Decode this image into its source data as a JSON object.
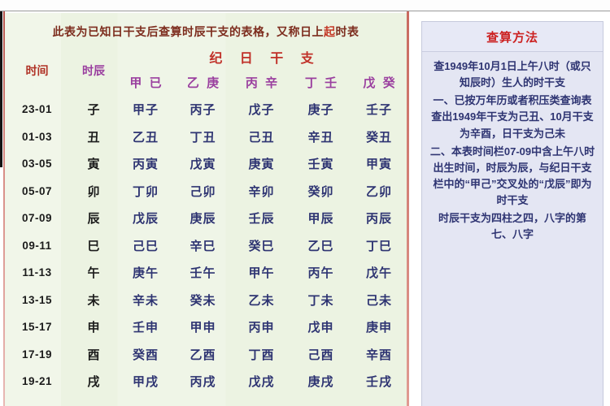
{
  "colors": {
    "table_bg": "#ecf3e2",
    "panel_bg": "#e4e6f3",
    "title_maroon": "#7d2d1e",
    "title_highlight_red": "#c43a28",
    "header_red": "#c03028",
    "time_header_red": "#b03226",
    "stem_purple": "#9a3f9f",
    "cell_navy": "#2e3472",
    "time_black": "#1c1c1c",
    "divider_pink": "#d98379",
    "panel_title_red": "#cc2222"
  },
  "header": {
    "title_part1": "此表为已知日干支后查算时辰干支的表格，又称日上",
    "title_part2": "起",
    "title_part3": "时表"
  },
  "table": {
    "group_header": "纪 日 干 支",
    "col_time": "时间",
    "col_branch": "时辰",
    "stem_cols": [
      "甲 已",
      "乙 庚",
      "丙 辛",
      "丁 壬",
      "戊 癸"
    ],
    "rows": [
      {
        "time": "23-01",
        "branch": "子",
        "cells": [
          "甲子",
          "丙子",
          "戊子",
          "庚子",
          "壬子"
        ]
      },
      {
        "time": "01-03",
        "branch": "丑",
        "cells": [
          "乙丑",
          "丁丑",
          "己丑",
          "辛丑",
          "癸丑"
        ]
      },
      {
        "time": "03-05",
        "branch": "寅",
        "cells": [
          "丙寅",
          "戊寅",
          "庚寅",
          "壬寅",
          "甲寅"
        ]
      },
      {
        "time": "05-07",
        "branch": "卯",
        "cells": [
          "丁卯",
          "己卯",
          "辛卯",
          "癸卯",
          "乙卯"
        ]
      },
      {
        "time": "07-09",
        "branch": "辰",
        "cells": [
          "戊辰",
          "庚辰",
          "壬辰",
          "甲辰",
          "丙辰"
        ]
      },
      {
        "time": "09-11",
        "branch": "巳",
        "cells": [
          "己巳",
          "辛巳",
          "癸巳",
          "乙巳",
          "丁巳"
        ]
      },
      {
        "time": "11-13",
        "branch": "午",
        "cells": [
          "庚午",
          "壬午",
          "甲午",
          "丙午",
          "戊午"
        ]
      },
      {
        "time": "13-15",
        "branch": "未",
        "cells": [
          "辛未",
          "癸未",
          "乙未",
          "丁未",
          "己未"
        ]
      },
      {
        "time": "15-17",
        "branch": "申",
        "cells": [
          "壬申",
          "甲申",
          "丙申",
          "戊申",
          "庚申"
        ]
      },
      {
        "time": "17-19",
        "branch": "酉",
        "cells": [
          "癸酉",
          "乙酉",
          "丁酉",
          "己酉",
          "辛酉"
        ]
      },
      {
        "time": "19-21",
        "branch": "戌",
        "cells": [
          "甲戌",
          "丙戌",
          "戊戌",
          "庚戌",
          "壬戌"
        ]
      }
    ]
  },
  "sidebar": {
    "title": "查算方法",
    "lines": [
      "查1949年10月1日上午八时（或只知辰时）生人的时干支",
      "一、已按万年历或者积压类查询表查出1949年干支为己丑、10月干支为辛酉，日干支为己未",
      "二、本表时间栏07-09中含上午八时出生时间，时辰为辰，与纪日干支栏中的“甲己”交叉处的“戊辰”即为时干支",
      "时辰干支为四柱之四，八字的第七、八字"
    ]
  }
}
